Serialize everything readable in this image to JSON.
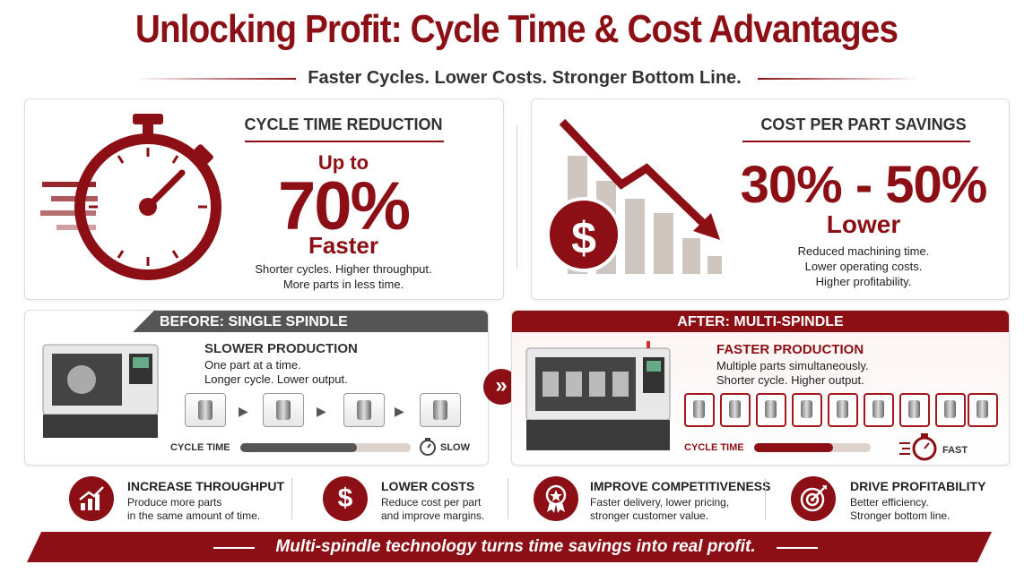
{
  "header": {
    "title": "Unlocking Profit: Cycle Time & Cost Advantages",
    "subtitle": "Faster Cycles. Lower Costs. Stronger Bottom Line."
  },
  "cycle_time": {
    "heading": "CYCLE TIME REDUCTION",
    "prefix": "Up to",
    "figure": "70%",
    "suffix": "Faster",
    "notes": [
      "Shorter cycles. Higher throughput.",
      "More parts in less time."
    ]
  },
  "cost": {
    "heading": "COST PER PART SAVINGS",
    "icon": "$",
    "figure": "30% - 50%",
    "suffix": "Lower",
    "notes": [
      "Reduced machining time.",
      "Lower operating costs.",
      "Higher profitability."
    ]
  },
  "before": {
    "banner": "BEFORE: SINGLE SPINDLE",
    "heading": "SLOWER PRODUCTION",
    "notes": [
      "One part at a time.",
      "Longer cycle. Lower output."
    ],
    "meter_label": "CYCLE TIME",
    "speed": "SLOW"
  },
  "after": {
    "banner": "AFTER: MULTI-SPINDLE",
    "heading": "FASTER PRODUCTION",
    "notes": [
      "Multiple parts simultaneously.",
      "Shorter cycle. Higher output."
    ],
    "meter_label": "CYCLE TIME",
    "speed": "FAST"
  },
  "benefits": [
    {
      "title": "INCREASE THROUGHPUT",
      "lines": [
        "Produce more parts",
        "in the same amount of time."
      ]
    },
    {
      "title": "LOWER COSTS",
      "icon": "$",
      "lines": [
        "Reduce cost per part",
        "and improve margins."
      ]
    },
    {
      "title": "IMPROVE COMPETITIVENESS",
      "lines": [
        "Faster delivery, lower pricing,",
        "stronger customer value."
      ]
    },
    {
      "title": "DRIVE PROFITABILITY",
      "lines": [
        "Better efficiency.",
        "Stronger bottom line."
      ]
    }
  ],
  "footer": "Multi-spindle technology turns time savings into real profit."
}
